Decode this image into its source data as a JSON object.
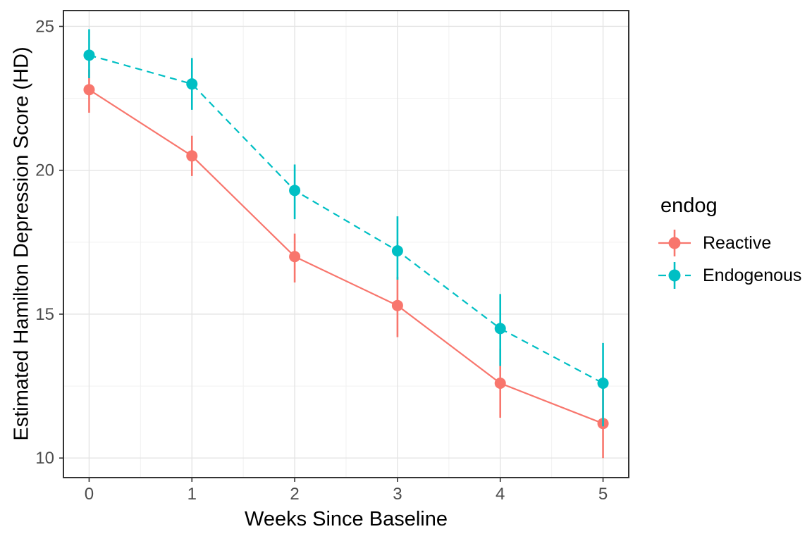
{
  "figure": {
    "background": "#FFFFFF",
    "panel_border_color": "#333333",
    "grid_major_color": "#E4E4E4",
    "grid_minor_color": "#F1F1F1",
    "tick_color": "#333333",
    "tick_label_color": "#4D4D4D"
  },
  "chart_data": {
    "type": "line",
    "title": "",
    "xlabel": "Weeks Since Baseline",
    "ylabel": "Estimated Hamilton Depression Score (HD)",
    "x": [
      0,
      1,
      2,
      3,
      4,
      5
    ],
    "x_tick_labels": [
      "0",
      "1",
      "2",
      "3",
      "4",
      "5"
    ],
    "y_ticks": [
      10,
      15,
      20,
      25
    ],
    "y_tick_labels": [
      "10",
      "15",
      "20",
      "25"
    ],
    "xlim": [
      -0.25,
      5.25
    ],
    "ylim": [
      9.32,
      25.55
    ],
    "grid": "major+minor",
    "legend_position": "right",
    "point_radius": 8,
    "series": [
      {
        "name": "Reactive",
        "color": "#F8766D",
        "linetype": "solid",
        "values": [
          22.8,
          20.5,
          17.0,
          15.3,
          12.6,
          11.2
        ],
        "ci_lower": [
          22.0,
          19.8,
          16.1,
          14.2,
          11.4,
          10.0
        ],
        "ci_upper": [
          23.5,
          21.2,
          17.8,
          16.3,
          13.8,
          12.4
        ]
      },
      {
        "name": "Endogenous",
        "color": "#00BFC4",
        "linetype": "dashed",
        "values": [
          24.0,
          23.0,
          19.3,
          17.2,
          14.5,
          12.6
        ],
        "ci_lower": [
          23.2,
          22.1,
          18.3,
          16.2,
          13.2,
          11.1
        ],
        "ci_upper": [
          24.9,
          23.9,
          20.2,
          18.4,
          15.7,
          14.0
        ]
      }
    ]
  },
  "legend": {
    "title": "endog",
    "items": [
      {
        "label": "Reactive",
        "color": "#F8766D",
        "linetype": "solid"
      },
      {
        "label": "Endogenous",
        "color": "#00BFC4",
        "linetype": "dashed"
      }
    ]
  }
}
